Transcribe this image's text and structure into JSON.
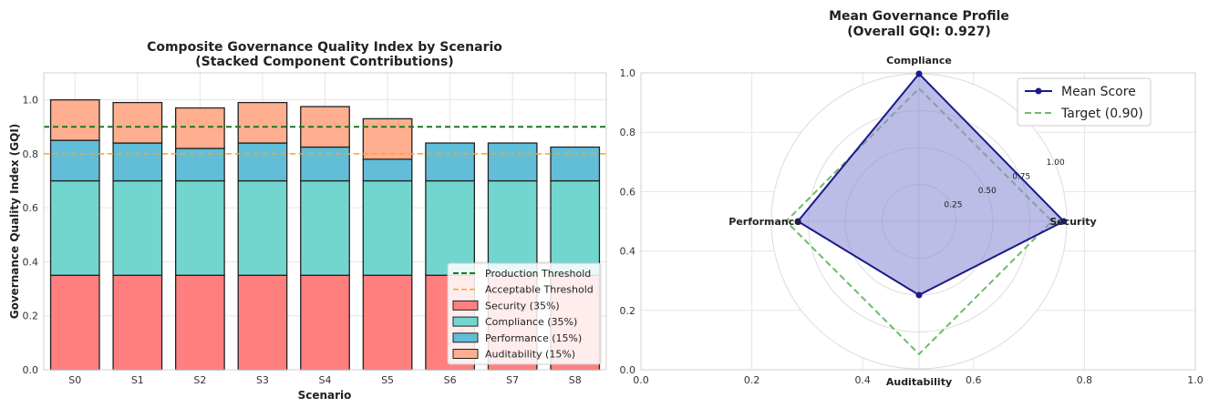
{
  "chart_data": [
    {
      "type": "bar",
      "stacked": true,
      "title": "Composite Governance Quality Index by Scenario",
      "subtitle": "(Stacked Component Contributions)",
      "xlabel": "Scenario",
      "ylabel": "Governance Quality Index (GQI)",
      "ylim": [
        0,
        1.1
      ],
      "yticks": [
        0.0,
        0.2,
        0.4,
        0.6,
        0.8,
        1.0
      ],
      "grid": true,
      "legend": "bottom-right",
      "categories": [
        "S0",
        "S1",
        "S2",
        "S3",
        "S4",
        "S5",
        "S6",
        "S7",
        "S8"
      ],
      "series": [
        {
          "name": "Security (35%)",
          "color": "#ff7f7f",
          "values": [
            0.35,
            0.35,
            0.35,
            0.35,
            0.35,
            0.35,
            0.35,
            0.35,
            0.35
          ]
        },
        {
          "name": "Compliance (35%)",
          "color": "#72d6cf",
          "values": [
            0.35,
            0.35,
            0.35,
            0.35,
            0.35,
            0.35,
            0.35,
            0.35,
            0.35
          ]
        },
        {
          "name": "Performance (15%)",
          "color": "#62bed8",
          "values": [
            0.15,
            0.14,
            0.12,
            0.14,
            0.125,
            0.08,
            0.14,
            0.14,
            0.125
          ]
        },
        {
          "name": "Auditability (15%)",
          "color": "#ffae8f",
          "values": [
            0.15,
            0.15,
            0.15,
            0.15,
            0.15,
            0.15,
            0.0,
            0.0,
            0.0
          ]
        }
      ],
      "reference_lines": [
        {
          "name": "Production Threshold",
          "value": 0.9,
          "color": "#1b7a1b",
          "style": "dashed"
        },
        {
          "name": "Acceptable Threshold",
          "value": 0.8,
          "color": "#f5a623",
          "style": "dashed"
        }
      ]
    },
    {
      "type": "radar",
      "title": "Mean Governance Profile",
      "subtitle": "(Overall GQI: 0.927)",
      "axes": [
        "Compliance",
        "Security",
        "Auditability",
        "Performance"
      ],
      "radial_ticks": [
        "0.25",
        "0.50",
        "0.75",
        "1.00"
      ],
      "rmax": 1.0,
      "background_xticks": [
        "0.0",
        "0.2",
        "0.4",
        "0.6",
        "0.8",
        "1.0"
      ],
      "background_yticks": [
        "0.0",
        "0.2",
        "0.4",
        "0.6",
        "0.8",
        "1.0"
      ],
      "legend": "top-right",
      "series": [
        {
          "name": "Mean Score",
          "color": "#1a1a8c",
          "fill": "#8f90d6",
          "style": "solid",
          "markers": true,
          "values": [
            1.0,
            0.98,
            0.5,
            0.82
          ]
        },
        {
          "name": "Target (0.90)",
          "color": "#6dbb6d",
          "style": "dashed",
          "markers": false,
          "values": [
            0.9,
            0.9,
            0.9,
            0.9
          ]
        }
      ]
    }
  ]
}
